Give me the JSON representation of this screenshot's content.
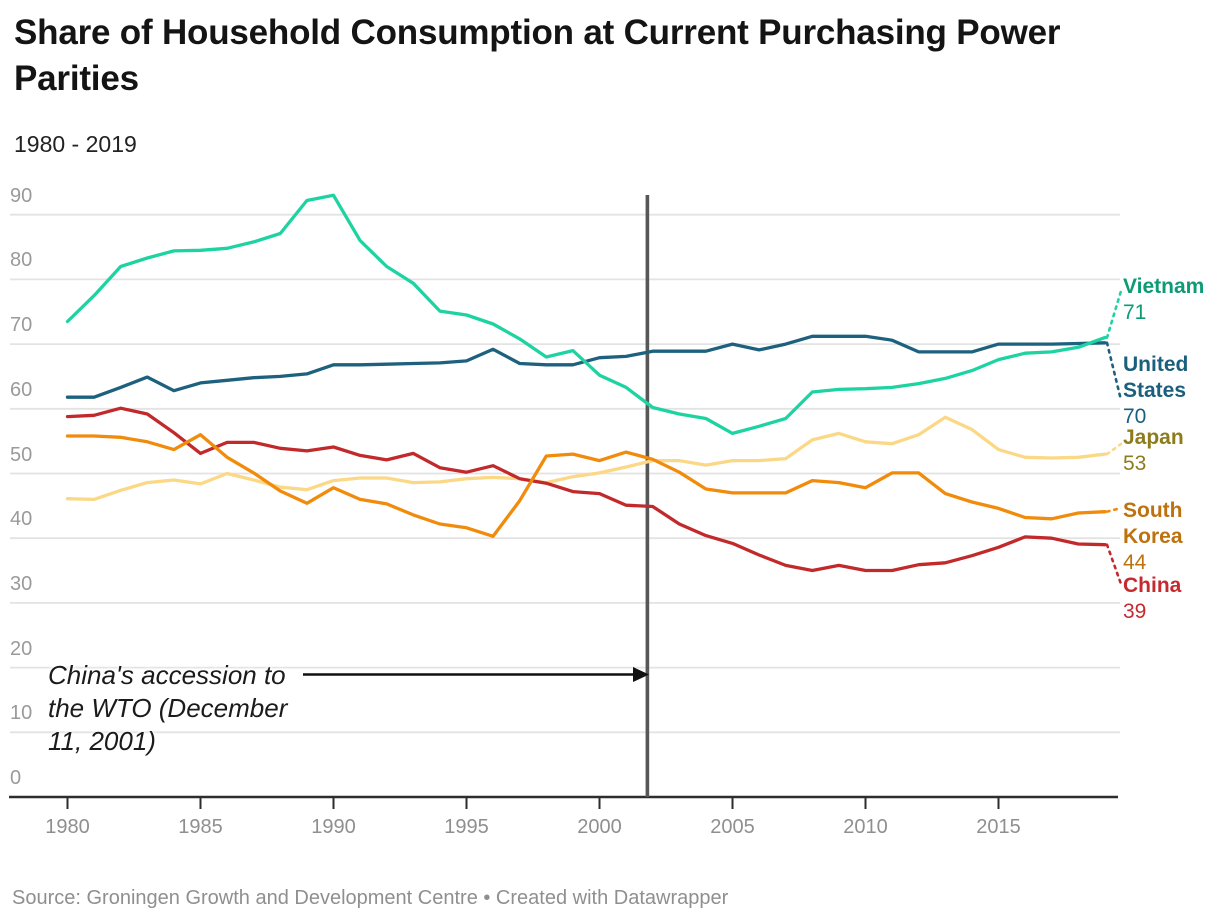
{
  "footer": {
    "text": "Source: Groningen Growth and Development Centre • Created with Datawrapper"
  },
  "annotation": {
    "lines": [
      "China's accession to",
      "the WTO (December",
      "11, 2001)"
    ]
  },
  "chart_data": {
    "type": "line",
    "title": "Share of Household Consumption at Current Purchasing Power Parities",
    "subtitle": "1980 - 2019",
    "xlabel": "",
    "ylabel": "",
    "grid": true,
    "legend_position": "right-edge-labels",
    "ylim": [
      0,
      95
    ],
    "x_ticks": [
      1980,
      1985,
      1990,
      1995,
      2000,
      2005,
      2010,
      2015
    ],
    "y_ticks": [
      0,
      10,
      20,
      30,
      40,
      50,
      60,
      70,
      80,
      90
    ],
    "event_line": {
      "x": 2001.8,
      "note": "China's accession to the WTO (December 11, 2001)"
    },
    "x": [
      1980,
      1981,
      1982,
      1983,
      1984,
      1985,
      1986,
      1987,
      1988,
      1989,
      1990,
      1991,
      1992,
      1993,
      1994,
      1995,
      1996,
      1997,
      1998,
      1999,
      2000,
      2001,
      2002,
      2003,
      2004,
      2005,
      2006,
      2007,
      2008,
      2009,
      2010,
      2011,
      2012,
      2013,
      2014,
      2015,
      2016,
      2017,
      2018,
      2019
    ],
    "series": [
      {
        "name": "Vietnam",
        "end_label": "71",
        "color": "#1ed3a2",
        "label_color": "#0d9b76",
        "label_lines": [
          "Vietnam"
        ],
        "values": [
          73.5,
          77.5,
          82,
          83.3,
          84.4,
          84.5,
          84.8,
          85.8,
          87.1,
          92.2,
          93,
          86,
          82,
          79.4,
          75.1,
          74.5,
          73.1,
          70.8,
          68,
          69,
          65.2,
          63.3,
          60.2,
          59.2,
          58.5,
          56.2,
          57.3,
          58.5,
          62.6,
          63,
          63.1,
          63.3,
          63.9,
          64.7,
          65.9,
          67.6,
          68.6,
          68.8,
          69.5,
          71
        ]
      },
      {
        "name": "United States",
        "end_label": "70",
        "color": "#1d617e",
        "label_color": "#1a5f7d",
        "label_lines": [
          "United",
          "States"
        ],
        "values": [
          61.8,
          61.8,
          63.3,
          64.9,
          62.8,
          64,
          64.4,
          64.8,
          65,
          65.4,
          66.8,
          66.8,
          66.9,
          67,
          67.1,
          67.4,
          69.2,
          67,
          66.8,
          66.8,
          67.9,
          68.1,
          68.9,
          68.9,
          68.9,
          70,
          69.1,
          70,
          71.2,
          71.2,
          71.2,
          70.6,
          68.8,
          68.8,
          68.8,
          70,
          70,
          70,
          70.1,
          70.2
        ]
      },
      {
        "name": "Japan",
        "end_label": "53",
        "color": "#fbd886",
        "label_color": "#8e7c1c",
        "label_lines": [
          "Japan"
        ],
        "values": [
          46.1,
          46,
          47.4,
          48.6,
          49,
          48.4,
          50,
          49,
          47.9,
          47.5,
          48.9,
          49.3,
          49.3,
          48.6,
          48.7,
          49.2,
          49.4,
          49.2,
          48.6,
          49.5,
          50.1,
          51,
          52,
          52,
          51.3,
          52,
          52,
          52.3,
          55.2,
          56.2,
          54.9,
          54.6,
          56,
          58.7,
          56.8,
          53.7,
          52.5,
          52.4,
          52.5,
          53
        ]
      },
      {
        "name": "South Korea",
        "end_label": "44",
        "color": "#f18b0c",
        "label_color": "#bd720e",
        "label_lines": [
          "South",
          "Korea"
        ],
        "values": [
          55.8,
          55.8,
          55.6,
          54.9,
          53.7,
          56,
          52.5,
          50.1,
          47.3,
          45.4,
          47.8,
          46,
          45.3,
          43.6,
          42.2,
          41.6,
          40.3,
          45.8,
          52.7,
          53,
          52,
          53.3,
          52.2,
          50.2,
          47.6,
          47,
          47,
          47,
          48.9,
          48.6,
          47.8,
          50.1,
          50.1,
          46.9,
          45.6,
          44.6,
          43.2,
          43,
          43.9,
          44.1
        ]
      },
      {
        "name": "China",
        "end_label": "39",
        "color": "#c2292b",
        "label_color": "#c52a2f",
        "label_lines": [
          "China"
        ],
        "values": [
          58.8,
          59,
          60.1,
          59.2,
          56.3,
          53.1,
          54.8,
          54.8,
          53.9,
          53.5,
          54.1,
          52.8,
          52.1,
          53.1,
          50.9,
          50.2,
          51.2,
          49.2,
          48.5,
          47.2,
          46.9,
          45.1,
          44.9,
          42.2,
          40.4,
          39.2,
          37.4,
          35.8,
          35,
          35.8,
          35,
          35,
          35.9,
          36.2,
          37.3,
          38.6,
          40.2,
          40,
          39.1,
          39
        ]
      }
    ]
  }
}
